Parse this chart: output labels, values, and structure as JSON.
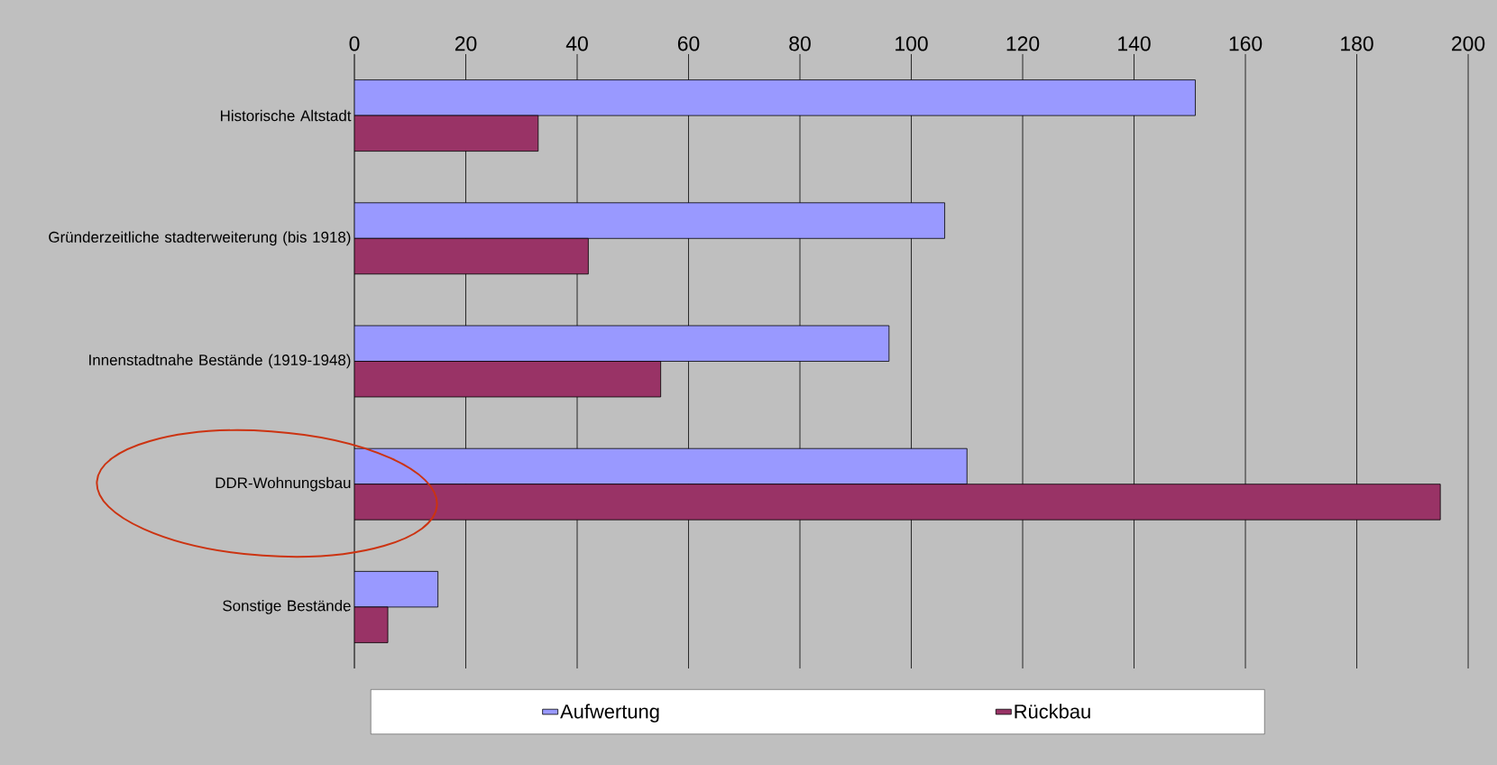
{
  "chart_data": {
    "type": "bar",
    "orientation": "horizontal",
    "categories": [
      "Historische Altstadt",
      "Gründerzeitliche stadterweiterung (bis 1918)",
      "Innenstadtnahe Bestände (1919-1948)",
      "DDR-Wohnungsbau",
      "Sonstige Bestände"
    ],
    "series": [
      {
        "name": "Aufwertung",
        "color": "#9999ff",
        "values": [
          151,
          106,
          96,
          110,
          15
        ]
      },
      {
        "name": "Rückbau",
        "color": "#993366",
        "values": [
          33,
          42,
          55,
          195,
          6
        ]
      }
    ],
    "xlim": [
      0,
      200
    ],
    "xticks": [
      0,
      20,
      40,
      60,
      80,
      100,
      120,
      140,
      160,
      180,
      200
    ],
    "grid": "x",
    "legend": "bottom"
  }
}
